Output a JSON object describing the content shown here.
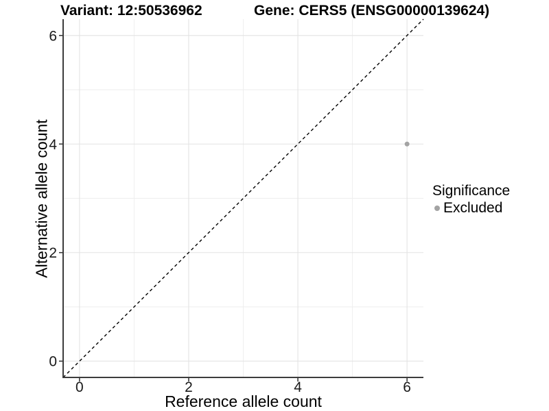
{
  "chart_data": {
    "type": "scatter",
    "title_left": "Variant: 12:50536962",
    "title_right": "Gene: CERS5 (ENSG00000139624)",
    "xlabel": "Reference allele count",
    "ylabel": "Alternative allele count",
    "xlim": [
      -0.3,
      6.3
    ],
    "ylim": [
      -0.3,
      6.3
    ],
    "x_breaks": [
      0,
      2,
      4,
      6
    ],
    "y_breaks": [
      0,
      2,
      4,
      6
    ],
    "x_minor_breaks": [
      1,
      3,
      5
    ],
    "y_minor_breaks": [
      1,
      3,
      5
    ],
    "grid": "major+minor on white background",
    "legend_title": "Significance",
    "legend_position": "right",
    "series": [
      {
        "name": "Excluded",
        "color": "#a3a3a3",
        "points": [
          {
            "x": 6,
            "y": 4
          }
        ]
      }
    ],
    "reference_line": {
      "slope": 1,
      "intercept": 0,
      "style": "dashed",
      "color": "#000000"
    }
  },
  "colors": {
    "background": "#ffffff",
    "grid_major": "#e3e3e3",
    "grid_minor": "#eeeeee",
    "axis": "#3c3c3c",
    "tick_text": "#1a1a1a"
  }
}
